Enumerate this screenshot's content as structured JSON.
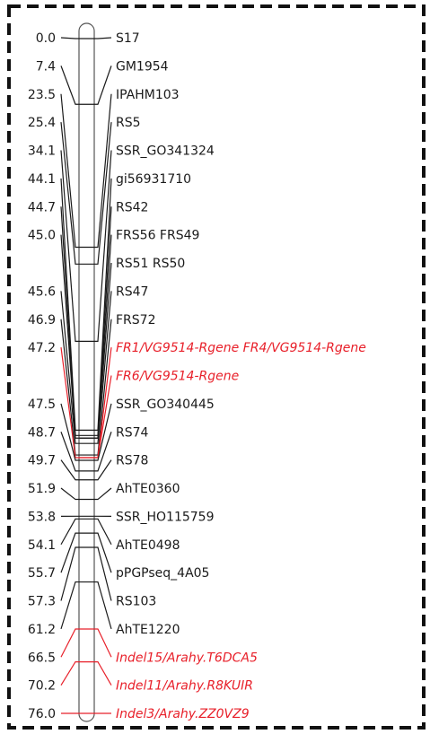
{
  "diagram": {
    "type": "genetic-linkage-map",
    "border_style": "dashed",
    "colors": {
      "normal": "#1a1a1a",
      "highlight": "#e8202a",
      "chromosome_fill": "#ffffff"
    },
    "markers": [
      {
        "pos": "0.0",
        "cm": 0.0,
        "label": "S17",
        "color": "black"
      },
      {
        "pos": "7.4",
        "cm": 7.4,
        "label": "GM1954",
        "color": "black"
      },
      {
        "pos": "23.5",
        "cm": 23.5,
        "label": "IPAHM103",
        "color": "black"
      },
      {
        "pos": "25.4",
        "cm": 25.4,
        "label": "RS5",
        "color": "black"
      },
      {
        "pos": "34.1",
        "cm": 34.1,
        "label": "SSR_GO341324",
        "color": "black"
      },
      {
        "pos": "44.1",
        "cm": 44.1,
        "label": "gi56931710",
        "color": "black"
      },
      {
        "pos": "44.7",
        "cm": 44.7,
        "label": "RS42",
        "color": "black"
      },
      {
        "pos": "45.0",
        "cm": 45.0,
        "label": "FRS56 FRS49",
        "color": "black"
      },
      {
        "pos": "",
        "cm": 45.0,
        "label": "RS51 RS50",
        "color": "black"
      },
      {
        "pos": "45.6",
        "cm": 45.6,
        "label": "RS47",
        "color": "black"
      },
      {
        "pos": "46.9",
        "cm": 46.9,
        "label": "FRS72",
        "color": "black"
      },
      {
        "pos": "47.2",
        "cm": 47.2,
        "label": "FR1/VG9514-Rgene FR4/VG9514-Rgene",
        "color": "red"
      },
      {
        "pos": "",
        "cm": 47.2,
        "label": "FR6/VG9514-Rgene",
        "color": "red"
      },
      {
        "pos": "47.5",
        "cm": 47.5,
        "label": "SSR_GO340445",
        "color": "black"
      },
      {
        "pos": "48.7",
        "cm": 48.7,
        "label": "RS74",
        "color": "black"
      },
      {
        "pos": "49.7",
        "cm": 49.7,
        "label": "RS78",
        "color": "black"
      },
      {
        "pos": "51.9",
        "cm": 51.9,
        "label": "AhTE0360",
        "color": "black"
      },
      {
        "pos": "53.8",
        "cm": 53.8,
        "label": "SSR_HO115759",
        "color": "black"
      },
      {
        "pos": "54.1",
        "cm": 54.1,
        "label": "AhTE0498",
        "color": "black"
      },
      {
        "pos": "55.7",
        "cm": 55.7,
        "label": "pPGPseq_4A05",
        "color": "black"
      },
      {
        "pos": "57.3",
        "cm": 57.3,
        "label": "RS103",
        "color": "black"
      },
      {
        "pos": "61.2",
        "cm": 61.2,
        "label": "AhTE1220",
        "color": "black"
      },
      {
        "pos": "66.5",
        "cm": 66.5,
        "label": "Indel15/Arahy.T6DCA5",
        "color": "red"
      },
      {
        "pos": "70.2",
        "cm": 70.2,
        "label": "Indel11/Arahy.R8KUIR",
        "color": "red"
      },
      {
        "pos": "76.0",
        "cm": 76.0,
        "label": "Indel3/Arahy.ZZ0VZ9",
        "color": "red"
      }
    ]
  }
}
